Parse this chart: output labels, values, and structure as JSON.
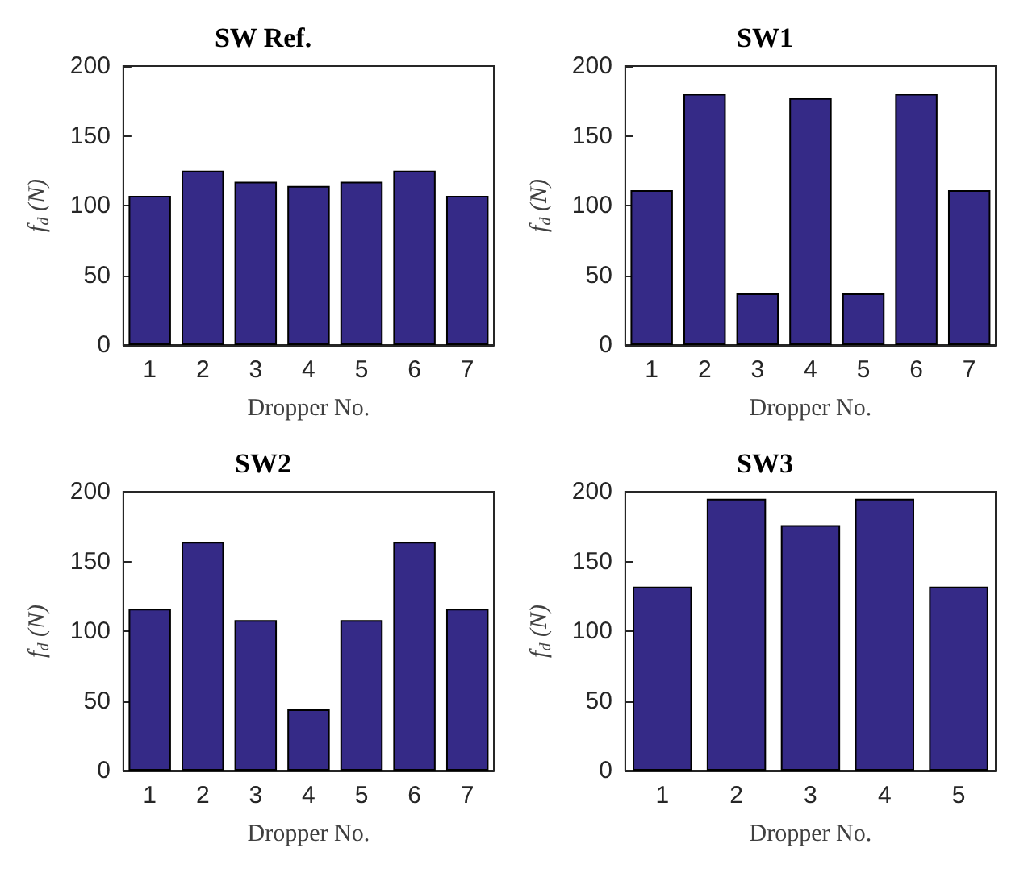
{
  "chart_data": [
    {
      "type": "bar",
      "title": "SW Ref.",
      "xlabel": "Dropper No.",
      "ylabel": "f$_{d}$ (N)",
      "categories": [
        "1",
        "2",
        "3",
        "4",
        "5",
        "6",
        "7"
      ],
      "values": [
        107,
        125,
        117,
        114,
        117,
        125,
        107
      ],
      "color": "#352a87",
      "ylim": [
        0,
        200
      ],
      "yticks": [
        0,
        50,
        100,
        150,
        200
      ],
      "grid": false
    },
    {
      "type": "bar",
      "title": "SW1",
      "xlabel": "Dropper No.",
      "ylabel": "f$_{d}$ (N)",
      "categories": [
        "1",
        "2",
        "3",
        "4",
        "5",
        "6",
        "7"
      ],
      "values": [
        111,
        180,
        37,
        177,
        37,
        180,
        111
      ],
      "color": "#352a87",
      "ylim": [
        0,
        200
      ],
      "yticks": [
        0,
        50,
        100,
        150,
        200
      ],
      "grid": false
    },
    {
      "type": "bar",
      "title": "SW2",
      "xlabel": "Dropper No.",
      "ylabel": "f$_{d}$ (N)",
      "categories": [
        "1",
        "2",
        "3",
        "4",
        "5",
        "6",
        "7"
      ],
      "values": [
        116,
        164,
        108,
        44,
        108,
        164,
        116
      ],
      "color": "#352a87",
      "ylim": [
        0,
        200
      ],
      "yticks": [
        0,
        50,
        100,
        150,
        200
      ],
      "grid": false
    },
    {
      "type": "bar",
      "title": "SW3",
      "xlabel": "Dropper No.",
      "ylabel": "f$_{d}$ (N)",
      "categories": [
        "1",
        "2",
        "3",
        "4",
        "5"
      ],
      "values": [
        132,
        195,
        176,
        195,
        132
      ],
      "color": "#352a87",
      "ylim": [
        0,
        200
      ],
      "yticks": [
        0,
        50,
        100,
        150,
        200
      ],
      "grid": false
    }
  ]
}
